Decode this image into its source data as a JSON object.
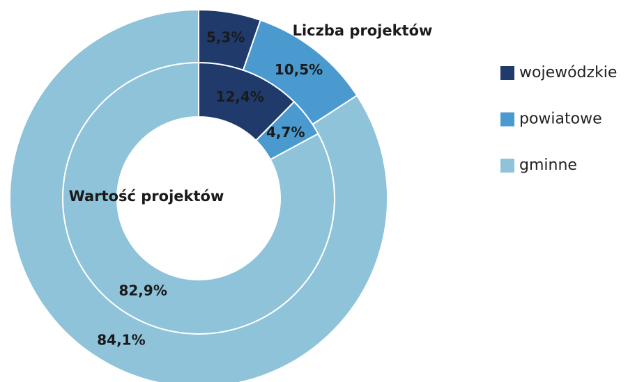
{
  "chart_data": {
    "type": "donut",
    "categories": [
      "wojewódzkie",
      "powiatowe",
      "gminne"
    ],
    "colors": [
      "#1f3a6b",
      "#4a9ad0",
      "#8ec3d9"
    ],
    "series": [
      {
        "name": "Liczba projektów",
        "values": [
          5.3,
          10.5,
          84.1
        ],
        "value_labels": [
          "5,3%",
          "10,5%",
          "84,1%"
        ]
      },
      {
        "name": "Wartość projektów",
        "values": [
          12.4,
          4.7,
          82.9
        ],
        "value_labels": [
          "12,4%",
          "4,7%",
          "82,9%"
        ]
      }
    ],
    "legend": "right"
  }
}
